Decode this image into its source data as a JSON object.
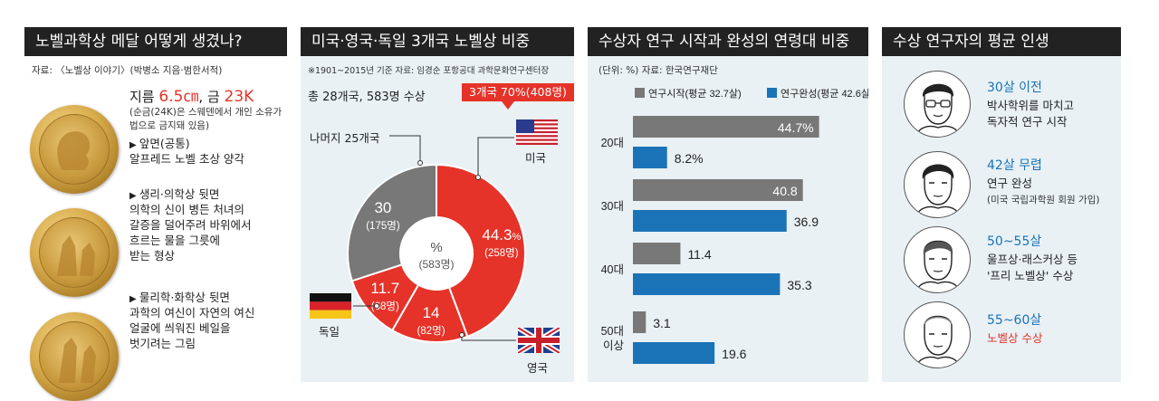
{
  "panel1": {
    "title": "노벨과학상 메달 어떻게 생겼나?",
    "source": "자료: 〈노벨상 이야기〉(박병소 지음·범한서적)",
    "size_prefix": "지름 ",
    "size_value": "6.5㎝",
    "size_mid": ", 금 ",
    "gold_value": "23K",
    "note_line1": "(순금(24K)은 스웨덴에서 개인 소유가",
    "note_line2": "법으로 금지돼 있음)",
    "front_title": "앞면(공통)",
    "front_desc": "알프레드 노벨 초상 양각",
    "med_title": "생리·의학상 뒷면",
    "med_desc1": "의학의 신이 병든 처녀의",
    "med_desc2": "갈증을 덜어주려 바위에서",
    "med_desc3": "흐르는 물을 그릇에",
    "med_desc4": "받는 형상",
    "phys_title": "물리학·화학상 뒷면",
    "phys_desc1": "과학의 여신이 자연의 여신",
    "phys_desc2": "얼굴에 씌워진 베일을",
    "phys_desc3": "벗기려는 그림"
  },
  "panel2": {
    "title": "미국·영국·독일 3개국 노벨상 비중",
    "source": "※1901~2015년 기준  자료: 임경순 포항공대 과학문화연구센터장",
    "total": "총 28개국, 583명 수상",
    "callout": "3개국 70%(408명)",
    "rest_label": "나머지 25개국",
    "center_pct": "%",
    "center_total": "(583명)",
    "usa_label": "미국",
    "uk_label": "영국",
    "de_label": "독일"
  },
  "panel3": {
    "title": "수상자 연구 시작과 완성의 연령대 비중",
    "source": "(단위: %) 자료: 한국연구재단"
  },
  "panel4": {
    "title": "수상 연구자의 평균 인생",
    "stages": [
      {
        "age": "30살 이전",
        "line1": "박사학위를 마치고",
        "line2": "독자적 연구 시작"
      },
      {
        "age": "42살 무렵",
        "line1": "연구 완성",
        "line2": "(미국 국립과학원 회원 가입)"
      },
      {
        "age": "50~55살",
        "line1": "울프상·래스커상 등",
        "line2": "'프리 노벨상' 수상"
      },
      {
        "age": "55~60살",
        "line1": "노벨상 수상",
        "line2": ""
      }
    ]
  },
  "colors": {
    "red": "#e53329",
    "gray": "#787878",
    "blue": "#1a73b7",
    "bg": "#e9f1f5"
  },
  "chart_data": [
    {
      "type": "pie",
      "title": "미국·영국·독일 3개국 노벨상 비중",
      "slices": [
        {
          "name": "미국",
          "value": 44.3,
          "value_label": "44.3",
          "unit": "%",
          "count_label": "(258명)",
          "color": "#e53329"
        },
        {
          "name": "영국",
          "value": 14,
          "value_label": "14",
          "count_label": "(82명)",
          "color": "#e53329"
        },
        {
          "name": "독일",
          "value": 11.7,
          "value_label": "11.7",
          "count_label": "(68명)",
          "color": "#e53329"
        },
        {
          "name": "나머지 25개국",
          "value": 30,
          "value_label": "30",
          "count_label": "(175명)",
          "color": "#787878"
        }
      ]
    },
    {
      "type": "bar",
      "title": "수상자 연구 시작과 완성의 연령대 비중",
      "orientation": "horizontal",
      "unit": "%",
      "categories": [
        "20대",
        "30대",
        "40대",
        "50대 이상"
      ],
      "series": [
        {
          "name": "연구시작(평균 32.7살)",
          "color": "#787878",
          "values": [
            44.7,
            40.8,
            11.4,
            3.1
          ],
          "labels": [
            "44.7%",
            "40.8",
            "11.4",
            "3.1"
          ]
        },
        {
          "name": "연구완성(평균 42.6살)",
          "color": "#1a73b7",
          "values": [
            8.2,
            36.9,
            35.3,
            19.6
          ],
          "labels": [
            "8.2%",
            "36.9",
            "35.3",
            "19.6"
          ]
        }
      ],
      "xlim": [
        0,
        50
      ],
      "legend": "top"
    }
  ]
}
